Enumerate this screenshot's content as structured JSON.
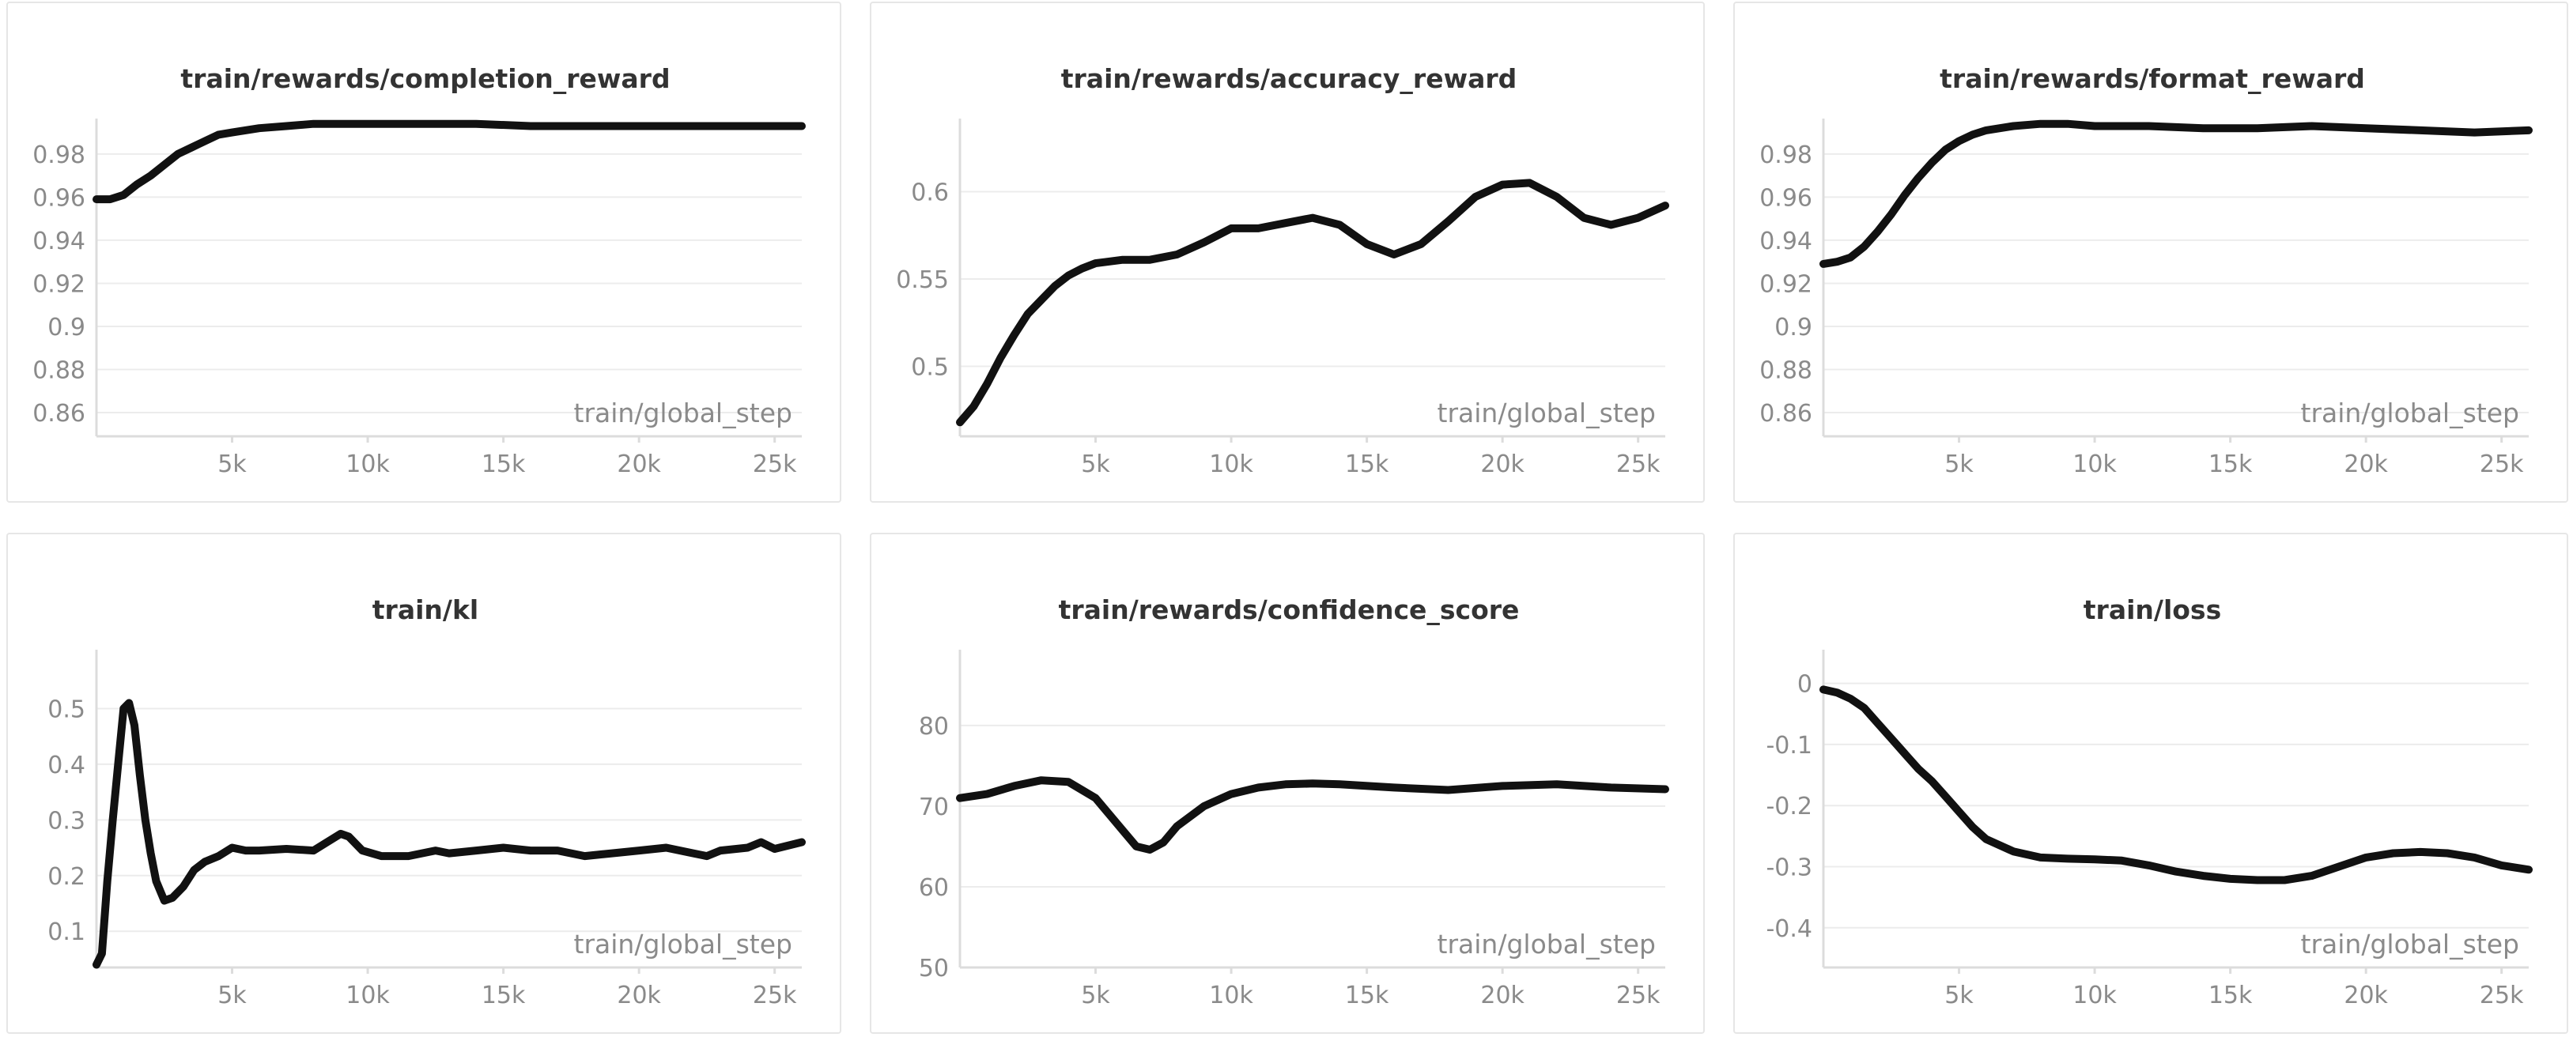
{
  "chart_data": [
    {
      "type": "line",
      "title": "train/rewards/completion_reward",
      "xlabel": "train/global_step",
      "x_ticks": [
        5000,
        10000,
        15000,
        20000,
        25000
      ],
      "x_tick_labels": [
        "5k",
        "10k",
        "15k",
        "20k",
        "25k"
      ],
      "y_ticks": [
        0.86,
        0.88,
        0.9,
        0.92,
        0.94,
        0.96,
        0.98
      ],
      "y_tick_labels": [
        "0.86",
        "0.88",
        "0.9",
        "0.92",
        "0.94",
        "0.96",
        "0.98"
      ],
      "xlim": [
        0,
        26000
      ],
      "ylim": [
        0.849,
        0.995
      ],
      "grid": true,
      "series": [
        {
          "x": [
            0,
            500,
            1000,
            1500,
            2000,
            2500,
            3000,
            3500,
            4000,
            4500,
            5000,
            6000,
            7000,
            8000,
            9000,
            10000,
            12000,
            14000,
            16000,
            18000,
            20000,
            22000,
            24000,
            26000
          ],
          "y": [
            0.959,
            0.959,
            0.961,
            0.966,
            0.97,
            0.975,
            0.98,
            0.983,
            0.986,
            0.989,
            0.99,
            0.992,
            0.993,
            0.994,
            0.994,
            0.994,
            0.994,
            0.994,
            0.993,
            0.993,
            0.993,
            0.993,
            0.993,
            0.993
          ]
        }
      ]
    },
    {
      "type": "line",
      "title": "train/rewards/accuracy_reward",
      "xlabel": "train/global_step",
      "x_ticks": [
        5000,
        10000,
        15000,
        20000,
        25000
      ],
      "x_tick_labels": [
        "5k",
        "10k",
        "15k",
        "20k",
        "25k"
      ],
      "y_ticks": [
        0.5,
        0.55,
        0.6
      ],
      "y_tick_labels": [
        "0.5",
        "0.55",
        "0.6"
      ],
      "xlim": [
        0,
        26000
      ],
      "ylim": [
        0.46,
        0.64
      ],
      "grid": true,
      "series": [
        {
          "x": [
            0,
            500,
            1000,
            1500,
            2000,
            2500,
            3000,
            3500,
            4000,
            4500,
            5000,
            6000,
            7000,
            8000,
            9000,
            10000,
            11000,
            12000,
            13000,
            14000,
            15000,
            16000,
            17000,
            18000,
            19000,
            20000,
            21000,
            22000,
            23000,
            24000,
            25000,
            26000
          ],
          "y": [
            0.468,
            0.477,
            0.49,
            0.505,
            0.518,
            0.53,
            0.538,
            0.546,
            0.552,
            0.556,
            0.559,
            0.561,
            0.561,
            0.564,
            0.571,
            0.579,
            0.579,
            0.582,
            0.585,
            0.581,
            0.57,
            0.564,
            0.57,
            0.583,
            0.597,
            0.604,
            0.605,
            0.597,
            0.585,
            0.581,
            0.585,
            0.592
          ]
        }
      ]
    },
    {
      "type": "line",
      "title": "train/rewards/format_reward",
      "xlabel": "train/global_step",
      "x_ticks": [
        5000,
        10000,
        15000,
        20000,
        25000
      ],
      "x_tick_labels": [
        "5k",
        "10k",
        "15k",
        "20k",
        "25k"
      ],
      "y_ticks": [
        0.86,
        0.88,
        0.9,
        0.92,
        0.94,
        0.96,
        0.98
      ],
      "y_tick_labels": [
        "0.86",
        "0.88",
        "0.9",
        "0.92",
        "0.94",
        "0.96",
        "0.98"
      ],
      "xlim": [
        0,
        26000
      ],
      "ylim": [
        0.849,
        0.995
      ],
      "grid": true,
      "series": [
        {
          "x": [
            0,
            500,
            1000,
            1500,
            2000,
            2500,
            3000,
            3500,
            4000,
            4500,
            5000,
            5500,
            6000,
            7000,
            8000,
            9000,
            10000,
            12000,
            14000,
            16000,
            18000,
            20000,
            22000,
            24000,
            26000
          ],
          "y": [
            0.929,
            0.93,
            0.932,
            0.937,
            0.944,
            0.952,
            0.961,
            0.969,
            0.976,
            0.982,
            0.986,
            0.989,
            0.991,
            0.993,
            0.994,
            0.994,
            0.993,
            0.993,
            0.992,
            0.992,
            0.993,
            0.992,
            0.991,
            0.99,
            0.991
          ]
        }
      ]
    },
    {
      "type": "line",
      "title": "train/kl",
      "xlabel": "train/global_step",
      "x_ticks": [
        5000,
        10000,
        15000,
        20000,
        25000
      ],
      "x_tick_labels": [
        "5k",
        "10k",
        "15k",
        "20k",
        "25k"
      ],
      "y_ticks": [
        0.1,
        0.2,
        0.3,
        0.4,
        0.5
      ],
      "y_tick_labels": [
        "0.1",
        "0.2",
        "0.3",
        "0.4",
        "0.5"
      ],
      "xlim": [
        0,
        26000
      ],
      "ylim": [
        0.035,
        0.6
      ],
      "grid": true,
      "series": [
        {
          "x": [
            0,
            200,
            400,
            600,
            800,
            1000,
            1200,
            1400,
            1600,
            1800,
            2000,
            2200,
            2500,
            2800,
            3200,
            3600,
            4000,
            4500,
            5000,
            5500,
            6000,
            7000,
            8000,
            8500,
            9000,
            9300,
            9800,
            10500,
            11500,
            12500,
            13000,
            14000,
            15000,
            16000,
            17000,
            18000,
            19000,
            20000,
            21000,
            22000,
            22500,
            23000,
            24000,
            24500,
            25000,
            26000
          ],
          "y": [
            0.04,
            0.06,
            0.19,
            0.3,
            0.4,
            0.5,
            0.51,
            0.47,
            0.38,
            0.3,
            0.24,
            0.19,
            0.155,
            0.16,
            0.18,
            0.21,
            0.225,
            0.235,
            0.25,
            0.245,
            0.245,
            0.248,
            0.245,
            0.26,
            0.275,
            0.27,
            0.245,
            0.235,
            0.235,
            0.245,
            0.24,
            0.245,
            0.25,
            0.245,
            0.245,
            0.235,
            0.24,
            0.245,
            0.25,
            0.24,
            0.235,
            0.245,
            0.25,
            0.26,
            0.248,
            0.26
          ]
        }
      ]
    },
    {
      "type": "line",
      "title": "train/rewards/confidence_score",
      "xlabel": "train/global_step",
      "x_ticks": [
        5000,
        10000,
        15000,
        20000,
        25000
      ],
      "x_tick_labels": [
        "5k",
        "10k",
        "15k",
        "20k",
        "25k"
      ],
      "y_ticks": [
        50,
        60,
        70,
        80
      ],
      "y_tick_labels": [
        "50",
        "60",
        "70",
        "80"
      ],
      "xlim": [
        0,
        26000
      ],
      "ylim": [
        50,
        89
      ],
      "grid": true,
      "series": [
        {
          "x": [
            0,
            1000,
            2000,
            3000,
            4000,
            5000,
            6000,
            6500,
            7000,
            7500,
            8000,
            9000,
            10000,
            11000,
            12000,
            13000,
            14000,
            16000,
            18000,
            20000,
            22000,
            24000,
            26000
          ],
          "y": [
            71.0,
            71.5,
            72.5,
            73.2,
            73.0,
            71.0,
            67.0,
            65.0,
            64.6,
            65.5,
            67.5,
            70.0,
            71.5,
            72.3,
            72.7,
            72.8,
            72.7,
            72.3,
            72.0,
            72.5,
            72.7,
            72.3,
            72.1
          ]
        }
      ]
    },
    {
      "type": "line",
      "title": "train/loss",
      "xlabel": "train/global_step",
      "x_ticks": [
        5000,
        10000,
        15000,
        20000,
        25000
      ],
      "x_tick_labels": [
        "5k",
        "10k",
        "15k",
        "20k",
        "25k"
      ],
      "y_ticks": [
        -0.4,
        -0.3,
        -0.2,
        -0.1,
        0
      ],
      "y_tick_labels": [
        "-0.4",
        "-0.3",
        "-0.2",
        "-0.1",
        "0"
      ],
      "xlim": [
        0,
        26000
      ],
      "ylim": [
        -0.465,
        0.05
      ],
      "grid": true,
      "series": [
        {
          "x": [
            0,
            500,
            1000,
            1500,
            2000,
            2500,
            3000,
            3500,
            4000,
            4500,
            5000,
            5500,
            6000,
            7000,
            8000,
            9000,
            10000,
            11000,
            12000,
            13000,
            14000,
            15000,
            16000,
            17000,
            18000,
            19000,
            20000,
            21000,
            22000,
            23000,
            24000,
            25000,
            26000
          ],
          "y": [
            -0.01,
            -0.015,
            -0.025,
            -0.04,
            -0.065,
            -0.09,
            -0.115,
            -0.14,
            -0.16,
            -0.185,
            -0.21,
            -0.235,
            -0.255,
            -0.275,
            -0.285,
            -0.287,
            -0.288,
            -0.29,
            -0.298,
            -0.308,
            -0.315,
            -0.32,
            -0.322,
            -0.322,
            -0.315,
            -0.3,
            -0.285,
            -0.278,
            -0.276,
            -0.278,
            -0.285,
            -0.298,
            -0.305
          ]
        }
      ]
    }
  ]
}
